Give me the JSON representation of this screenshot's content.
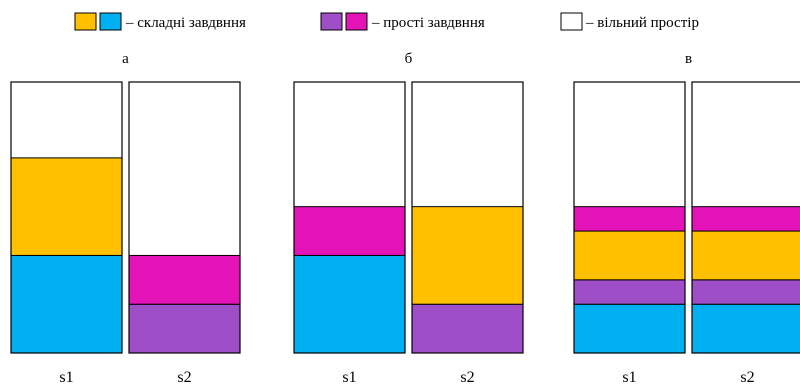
{
  "legend": {
    "complex": {
      "label": "– складні завдвння",
      "colors": [
        "#FFC000",
        "#00B0F0"
      ]
    },
    "simple": {
      "label": "– прості завдвння",
      "colors": [
        "#9E4FC8",
        "#E313B8"
      ]
    },
    "free": {
      "label": "– вільний простір",
      "color": "#FFFFFF"
    }
  },
  "colors": {
    "yellow": "#FFC000",
    "cyan": "#00B0F0",
    "purple": "#9E4FC8",
    "magenta": "#E313B8",
    "free": "#FFFFFF",
    "stroke": "#000000"
  },
  "panels": [
    {
      "label": "а",
      "servers": [
        {
          "name": "s1",
          "capacity": 100,
          "blocks": [
            {
              "color": "cyan",
              "value": 36
            },
            {
              "color": "yellow",
              "value": 36
            }
          ]
        },
        {
          "name": "s2",
          "capacity": 100,
          "blocks": [
            {
              "color": "purple",
              "value": 18
            },
            {
              "color": "magenta",
              "value": 18
            }
          ]
        }
      ]
    },
    {
      "label": "б",
      "servers": [
        {
          "name": "s1",
          "capacity": 100,
          "blocks": [
            {
              "color": "cyan",
              "value": 36
            },
            {
              "color": "magenta",
              "value": 18
            }
          ]
        },
        {
          "name": "s2",
          "capacity": 100,
          "blocks": [
            {
              "color": "purple",
              "value": 18
            },
            {
              "color": "yellow",
              "value": 36
            }
          ]
        }
      ]
    },
    {
      "label": "в",
      "servers": [
        {
          "name": "s1",
          "capacity": 100,
          "blocks": [
            {
              "color": "cyan",
              "value": 18
            },
            {
              "color": "purple",
              "value": 9
            },
            {
              "color": "yellow",
              "value": 18
            },
            {
              "color": "magenta",
              "value": 9
            }
          ]
        },
        {
          "name": "s2",
          "capacity": 100,
          "blocks": [
            {
              "color": "cyan",
              "value": 18
            },
            {
              "color": "purple",
              "value": 9
            },
            {
              "color": "yellow",
              "value": 18
            },
            {
              "color": "magenta",
              "value": 9
            }
          ]
        }
      ]
    }
  ]
}
